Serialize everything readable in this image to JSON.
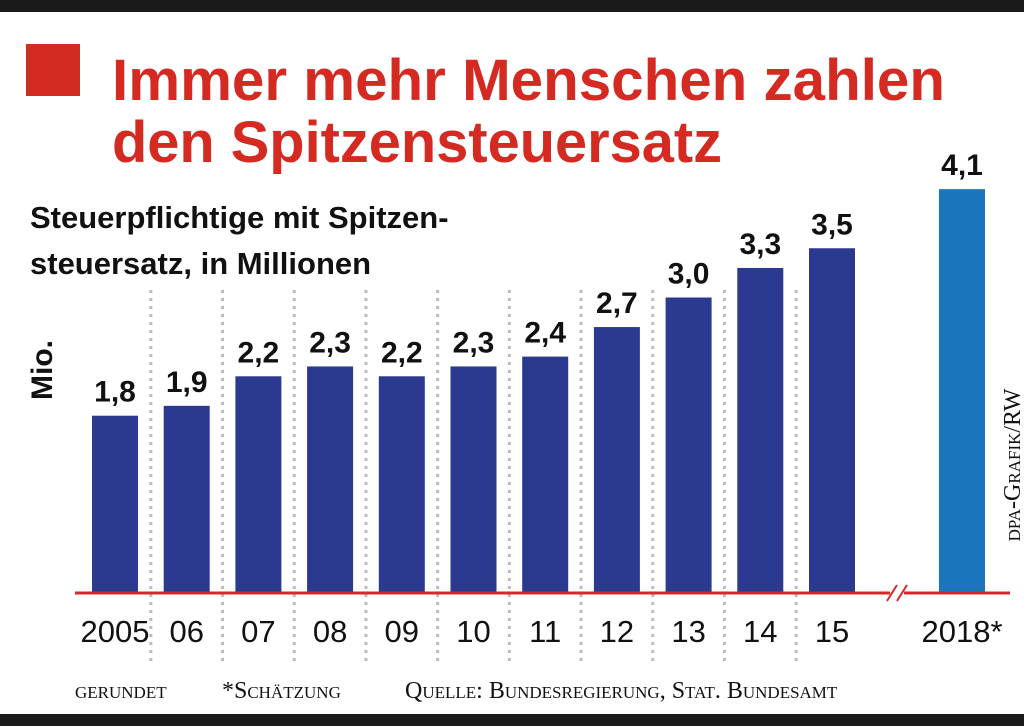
{
  "chart_data": {
    "type": "bar",
    "title": [
      "Immer mehr Menschen zahlen",
      "den Spitzensteuersatz"
    ],
    "subtitle": [
      "Steuerpflichtige mit Spitzen-",
      "steuersatz, in Millionen"
    ],
    "y_label": "Mio.",
    "categories": [
      "2005",
      "06",
      "07",
      "08",
      "09",
      "10",
      "11",
      "12",
      "13",
      "14",
      "15",
      "2018*"
    ],
    "values": [
      1.8,
      1.9,
      2.2,
      2.3,
      2.2,
      2.3,
      2.4,
      2.7,
      3.0,
      3.3,
      3.5,
      4.1
    ],
    "value_labels": [
      "1,8",
      "1,9",
      "2,2",
      "2,3",
      "2,2",
      "2,3",
      "2,4",
      "2,7",
      "3,0",
      "3,3",
      "3,5",
      "4,1"
    ],
    "colors": [
      "#2b3990",
      "#2b3990",
      "#2b3990",
      "#2b3990",
      "#2b3990",
      "#2b3990",
      "#2b3990",
      "#2b3990",
      "#2b3990",
      "#2b3990",
      "#2b3990",
      "#1b75bc"
    ],
    "axis_break_before": 11,
    "notes": [
      "gerundet",
      "*Schätzung",
      "Quelle: Bundesregierung, Stat. Bundesamt"
    ],
    "credit": "dpa-Grafik/RW"
  }
}
